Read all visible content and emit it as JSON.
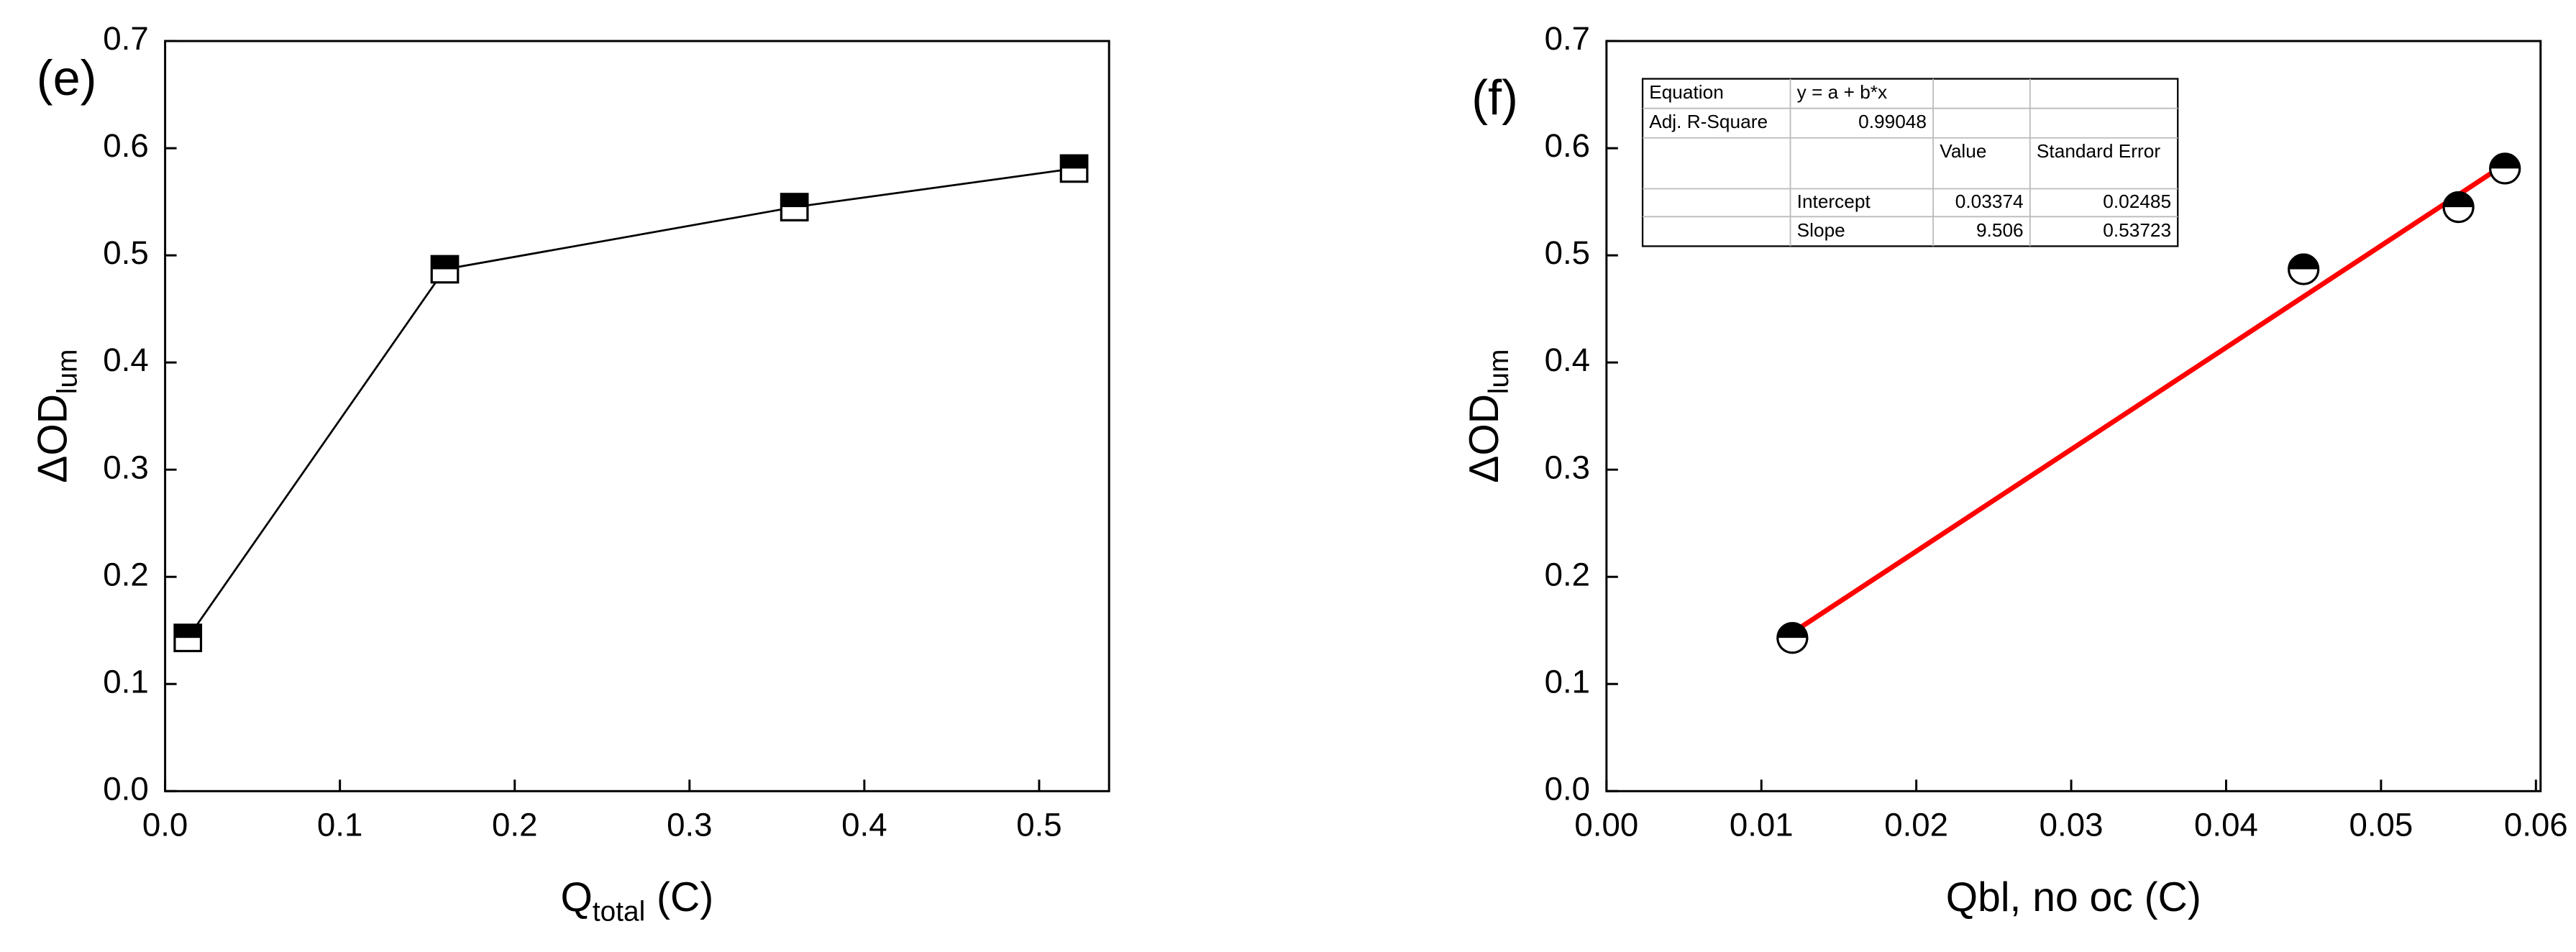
{
  "chart_data": [
    {
      "type": "line",
      "panel_label": "(e)",
      "xlabel": {
        "main": "Q",
        "sub": "total",
        "suffix": " (C)"
      },
      "ylabel": {
        "main": "ΔOD",
        "sub": "lum"
      },
      "x": [
        0.013,
        0.16,
        0.36,
        0.52
      ],
      "series": [
        {
          "values": [
            0.143,
            0.487,
            0.545,
            0.581
          ],
          "color": "#000000",
          "marker": "half-square"
        }
      ],
      "xlim": [
        0,
        0.54
      ],
      "ylim": [
        0,
        0.7
      ],
      "xticks": [
        {
          "value": 0,
          "label": "0.0"
        },
        {
          "value": 0.1,
          "label": "0.1"
        },
        {
          "value": 0.2,
          "label": "0.2"
        },
        {
          "value": 0.3,
          "label": "0.3"
        },
        {
          "value": 0.4,
          "label": "0.4"
        },
        {
          "value": 0.5,
          "label": "0.5"
        }
      ],
      "yticks": [
        {
          "value": 0,
          "label": "0.0"
        },
        {
          "value": 0.1,
          "label": "0.1"
        },
        {
          "value": 0.2,
          "label": "0.2"
        },
        {
          "value": 0.3,
          "label": "0.3"
        },
        {
          "value": 0.4,
          "label": "0.4"
        },
        {
          "value": 0.5,
          "label": "0.5"
        },
        {
          "value": 0.6,
          "label": "0.6"
        },
        {
          "value": 0.7,
          "label": "0.7"
        }
      ]
    },
    {
      "type": "scatter",
      "panel_label": "(f)",
      "xlabel": {
        "main": "Qbl, no oc (C)"
      },
      "ylabel": {
        "main": "ΔOD",
        "sub": "lum"
      },
      "x": [
        0.012,
        0.045,
        0.055,
        0.058
      ],
      "series": [
        {
          "values": [
            0.143,
            0.487,
            0.545,
            0.581
          ],
          "color": "#000000",
          "marker": "half-circle"
        }
      ],
      "fit_color": "#ff0000",
      "fit_table": {
        "equation_label": "Equation",
        "equation": "y = a + b*x",
        "adj_r2_label": "Adj. R-Square",
        "adj_r2": 0.99048,
        "headers": [
          "Value",
          "Standard Error"
        ],
        "rows": [
          {
            "name": "Intercept",
            "value": 0.03374,
            "error": 0.02485
          },
          {
            "name": "Slope",
            "value": 9.506,
            "error": 0.53723
          }
        ]
      },
      "xlim": [
        0,
        0.0603
      ],
      "ylim": [
        0,
        0.7
      ],
      "xticks": [
        {
          "value": 0,
          "label": "0.00"
        },
        {
          "value": 0.01,
          "label": "0.01"
        },
        {
          "value": 0.02,
          "label": "0.02"
        },
        {
          "value": 0.03,
          "label": "0.03"
        },
        {
          "value": 0.04,
          "label": "0.04"
        },
        {
          "value": 0.05,
          "label": "0.05"
        },
        {
          "value": 0.06,
          "label": "0.06"
        }
      ],
      "yticks": [
        {
          "value": 0,
          "label": "0.0"
        },
        {
          "value": 0.1,
          "label": "0.1"
        },
        {
          "value": 0.2,
          "label": "0.2"
        },
        {
          "value": 0.3,
          "label": "0.3"
        },
        {
          "value": 0.4,
          "label": "0.4"
        },
        {
          "value": 0.5,
          "label": "0.5"
        },
        {
          "value": 0.6,
          "label": "0.6"
        },
        {
          "value": 0.7,
          "label": "0.7"
        }
      ]
    }
  ]
}
